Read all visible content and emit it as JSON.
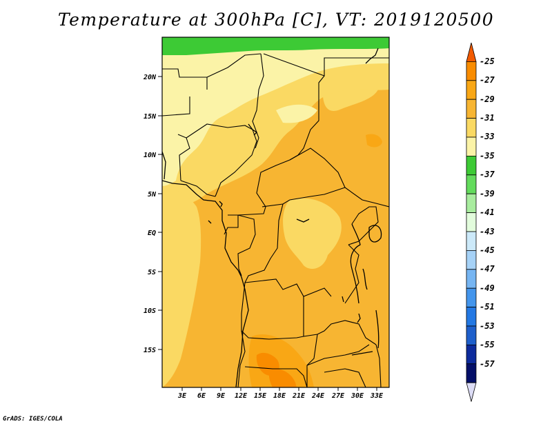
{
  "title": "Temperature at 300hPa [C], VT: 2019120500",
  "credit": "GrADS: IGES/COLA",
  "map": {
    "region": "Central and southern Africa",
    "lat_labels": [
      "20N",
      "15N",
      "10N",
      "5N",
      "EQ",
      "5S",
      "10S",
      "15S"
    ],
    "lon_labels": [
      "3E",
      "6E",
      "9E",
      "12E",
      "15E",
      "18E",
      "21E",
      "24E",
      "27E",
      "30E",
      "33E"
    ]
  },
  "colorbar": {
    "labels": [
      "-25",
      "-27",
      "-29",
      "-31",
      "-33",
      "-35",
      "-37",
      "-39",
      "-41",
      "-43",
      "-45",
      "-47",
      "-49",
      "-51",
      "-53",
      "-55",
      "-57"
    ],
    "colors": [
      "#f25a00",
      "#f98c00",
      "#f9a715",
      "#f7b532",
      "#fad963",
      "#fbf3a7",
      "#3dca35",
      "#63db5c",
      "#a8ec9e",
      "#e2fcdc",
      "#cce9f9",
      "#a6d2f7",
      "#76b5f2",
      "#4395ec",
      "#2378e3",
      "#1e5fcb",
      "#0d2b9c",
      "#040f68",
      "#dcdcf5"
    ]
  }
}
